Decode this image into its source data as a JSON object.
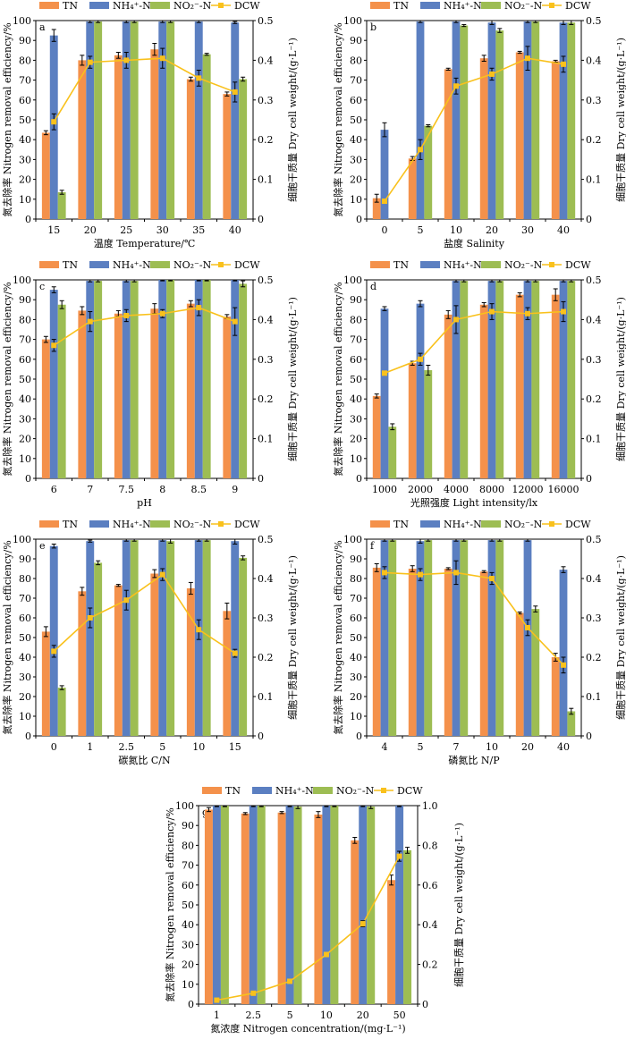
{
  "legend_labels": {
    "tn": "TN",
    "nh": "NH₄⁺-N",
    "no": "NO₂⁻-N",
    "dcw": "DCW"
  },
  "colors": {
    "tn": "#F4914B",
    "nh": "#5B7FC1",
    "no": "#9DBD53",
    "dcw": "#F9C11C",
    "err": "#000000"
  },
  "chart_data": [
    {
      "type": "bar",
      "id": "a",
      "categories": [
        "15",
        "20",
        "25",
        "30",
        "35",
        "40"
      ],
      "series": [
        {
          "name": "TN",
          "values": [
            43.5,
            80,
            82.5,
            85.5,
            70.5,
            63
          ]
        },
        {
          "name": "NH₄⁺-N",
          "values": [
            92.5,
            99.5,
            99.5,
            99.5,
            99.5,
            99
          ]
        },
        {
          "name": "NO₂⁻-N",
          "values": [
            13.5,
            99.5,
            99.5,
            99.5,
            83,
            70.5
          ]
        }
      ],
      "errors": [
        [
          1,
          2.5,
          1.5,
          3,
          1,
          1
        ],
        [
          3,
          0.5,
          0.5,
          0.5,
          0.5,
          0.5
        ],
        [
          1,
          0.5,
          0.5,
          0.5,
          0.5,
          1
        ]
      ],
      "dcw": [
        0.245,
        0.395,
        0.4,
        0.405,
        0.355,
        0.32
      ],
      "dcw_errors": [
        0.02,
        0.015,
        0.02,
        0.025,
        0.02,
        0.025
      ],
      "ylim": [
        0,
        100
      ],
      "ytick_step": 10,
      "y2lim": [
        0,
        0.5
      ],
      "y2tick_step": 0.1,
      "xlabel": "温度 Temperature/℃",
      "ylabel": "氮去除率 Nitrogen removal efficiency/%",
      "y2label": "细胞干质量 Dry cell weight/(g·L⁻¹)"
    },
    {
      "type": "bar",
      "id": "b",
      "categories": [
        "0",
        "5",
        "10",
        "20",
        "30",
        "40"
      ],
      "series": [
        {
          "name": "TN",
          "values": [
            10.5,
            30.5,
            75.5,
            81,
            84,
            79.5
          ]
        },
        {
          "name": "NH₄⁺-N",
          "values": [
            45,
            99.5,
            99.5,
            99,
            99.5,
            99
          ]
        },
        {
          "name": "NO₂⁻-N",
          "values": [
            0,
            47,
            97.5,
            95,
            99.5,
            99
          ]
        }
      ],
      "errors": [
        [
          2,
          1,
          0.5,
          1.5,
          0.5,
          0.5
        ],
        [
          3.5,
          0.5,
          0.5,
          1,
          0.5,
          1
        ],
        [
          0,
          0.5,
          0.5,
          1,
          0.5,
          1
        ]
      ],
      "dcw": [
        0.045,
        0.175,
        0.335,
        0.365,
        0.405,
        0.39
      ],
      "dcw_errors": [
        0.005,
        0.025,
        0.02,
        0.015,
        0.03,
        0.02
      ],
      "ylim": [
        0,
        100
      ],
      "ytick_step": 10,
      "y2lim": [
        0,
        0.5
      ],
      "y2tick_step": 0.1,
      "xlabel": "盐度 Salinity",
      "ylabel": "氮去除率 Nitrogen removal efficiency/%",
      "y2label": "细胞干质量 Dry cell weight/(g·L⁻¹)"
    },
    {
      "type": "bar",
      "id": "c",
      "categories": [
        "6",
        "7",
        "7.5",
        "8",
        "8.5",
        "9"
      ],
      "series": [
        {
          "name": "TN",
          "values": [
            70,
            84.5,
            83,
            85.5,
            88,
            81.5
          ]
        },
        {
          "name": "NH₄⁺-N",
          "values": [
            95,
            99.5,
            99.5,
            100,
            100,
            100
          ]
        },
        {
          "name": "NO₂⁻-N",
          "values": [
            87.5,
            99.5,
            99.5,
            100,
            100,
            98
          ]
        }
      ],
      "errors": [
        [
          1.5,
          2,
          1.5,
          2.5,
          1.5,
          1
        ],
        [
          1.5,
          0.5,
          0.5,
          0.5,
          0.5,
          0.5
        ],
        [
          2,
          0.5,
          0.5,
          0.5,
          0.5,
          1.5
        ]
      ],
      "dcw": [
        0.335,
        0.395,
        0.41,
        0.415,
        0.43,
        0.395
      ],
      "dcw_errors": [
        0.015,
        0.025,
        0.015,
        0.01,
        0.02,
        0.035
      ],
      "ylim": [
        0,
        100
      ],
      "ytick_step": 10,
      "y2lim": [
        0,
        0.5
      ],
      "y2tick_step": 0.1,
      "xlabel": "pH",
      "ylabel": "氮去除率 Nitrogen removal efficiency/%",
      "y2label": "细胞干质量 Dry cell weight/(g·L⁻¹)"
    },
    {
      "type": "bar",
      "id": "d",
      "categories": [
        "1000",
        "2000",
        "4000",
        "8000",
        "12000",
        "16000"
      ],
      "series": [
        {
          "name": "TN",
          "values": [
            41.5,
            58,
            82.5,
            87.5,
            92.5,
            92.5
          ]
        },
        {
          "name": "NH₄⁺-N",
          "values": [
            85.5,
            88,
            99.5,
            99.5,
            99.5,
            99.5
          ]
        },
        {
          "name": "NO₂⁻-N",
          "values": [
            26,
            54.5,
            99.5,
            99.5,
            99.5,
            99.5
          ]
        }
      ],
      "errors": [
        [
          1,
          1,
          2,
          1,
          1,
          3
        ],
        [
          1,
          1.5,
          0.5,
          0.5,
          0.5,
          0.5
        ],
        [
          1.5,
          2.5,
          0.5,
          0.5,
          0.5,
          0.5
        ]
      ],
      "dcw": [
        0.265,
        0.3,
        0.4,
        0.42,
        0.415,
        0.42
      ],
      "dcw_errors": [
        0.005,
        0.015,
        0.035,
        0.02,
        0.015,
        0.025
      ],
      "ylim": [
        0,
        100
      ],
      "ytick_step": 10,
      "y2lim": [
        0,
        0.5
      ],
      "y2tick_step": 0.1,
      "xlabel": "光照强度 Light intensity/lx",
      "ylabel": "氮去除率 Nitrogen removal efficiency/%",
      "y2label": "细胞干质量 Dry cell weight/(g·L⁻¹)"
    },
    {
      "type": "bar",
      "id": "e",
      "categories": [
        "0",
        "1",
        "2.5",
        "5",
        "10",
        "15"
      ],
      "series": [
        {
          "name": "TN",
          "values": [
            53,
            73.5,
            76.5,
            82.5,
            75,
            63.5
          ]
        },
        {
          "name": "NH₄⁺-N",
          "values": [
            96.5,
            99,
            99.5,
            99.5,
            99.5,
            99
          ]
        },
        {
          "name": "NO₂⁻-N",
          "values": [
            24.5,
            88,
            99.5,
            99,
            99.5,
            90.5
          ]
        }
      ],
      "errors": [
        [
          2.5,
          2,
          0.5,
          2,
          3,
          4
        ],
        [
          1,
          0.5,
          0.5,
          0.5,
          0.5,
          1.5
        ],
        [
          1,
          1,
          0.5,
          1,
          0.5,
          1
        ]
      ],
      "dcw": [
        0.215,
        0.3,
        0.345,
        0.41,
        0.27,
        0.21
      ],
      "dcw_errors": [
        0.015,
        0.025,
        0.025,
        0.015,
        0.025,
        0.01
      ],
      "ylim": [
        0,
        100
      ],
      "ytick_step": 10,
      "y2lim": [
        0,
        0.5
      ],
      "y2tick_step": 0.1,
      "xlabel": "碳氮比 C/N",
      "ylabel": "氮去除率 Nitrogen removal efficiency/%",
      "y2label": "细胞干质量 Dry cell weight/(g·L⁻¹)"
    },
    {
      "type": "bar",
      "id": "f",
      "categories": [
        "4",
        "5",
        "7",
        "10",
        "20",
        "40"
      ],
      "series": [
        {
          "name": "TN",
          "values": [
            85.5,
            85,
            85,
            83.5,
            62.5,
            40
          ]
        },
        {
          "name": "NH₄⁺-N",
          "values": [
            99.5,
            99,
            99.5,
            99.5,
            99.5,
            84.5
          ]
        },
        {
          "name": "NO₂⁻-N",
          "values": [
            99.5,
            99.5,
            99.5,
            99.5,
            64.5,
            12.5
          ]
        }
      ],
      "errors": [
        [
          2,
          1.5,
          0.5,
          0.5,
          0.5,
          2
        ],
        [
          0.5,
          1,
          0.5,
          0.5,
          0.5,
          1.5
        ],
        [
          0.5,
          0.5,
          0.5,
          0.5,
          1.5,
          1.5
        ]
      ],
      "dcw": [
        0.415,
        0.41,
        0.415,
        0.4,
        0.275,
        0.18
      ],
      "dcw_errors": [
        0.015,
        0.015,
        0.03,
        0.015,
        0.02,
        0.02
      ],
      "ylim": [
        0,
        100
      ],
      "ytick_step": 10,
      "y2lim": [
        0,
        0.5
      ],
      "y2tick_step": 0.1,
      "xlabel": "磷氮比 N/P",
      "ylabel": "氮去除率 Nitrogen removal efficiency/%",
      "y2label": "细胞干质量 Dry cell weight/(g·L⁻¹)"
    },
    {
      "type": "bar",
      "id": "g",
      "categories": [
        "1",
        "2.5",
        "5",
        "10",
        "20",
        "50"
      ],
      "series": [
        {
          "name": "TN",
          "values": [
            98,
            96,
            96.5,
            95.5,
            82.5,
            62.5
          ]
        },
        {
          "name": "NH₄⁺-N",
          "values": [
            100,
            100,
            100,
            100,
            100,
            100
          ]
        },
        {
          "name": "NO₂⁻-N",
          "values": [
            100,
            100,
            99.5,
            100,
            99.5,
            77.5
          ]
        }
      ],
      "errors": [
        [
          1,
          0.5,
          0.5,
          1.5,
          1.5,
          2.5
        ],
        [
          0.5,
          0.5,
          0.5,
          0.5,
          0.5,
          0.5
        ],
        [
          0.5,
          0.5,
          1,
          0.5,
          1,
          1.5
        ]
      ],
      "dcw": [
        0.02,
        0.055,
        0.115,
        0.25,
        0.405,
        0.745
      ],
      "dcw_errors": [
        0.005,
        0.005,
        0.01,
        0.01,
        0.015,
        0.025
      ],
      "ylim": [
        0,
        100
      ],
      "ytick_step": 10,
      "y2lim": [
        0,
        1.0
      ],
      "y2tick_step": 0.2,
      "xlabel": "氮浓度 Nitrogen concentration/(mg·L⁻¹)",
      "ylabel": "氮去除率 Nitrogen removal efficiency/%",
      "y2label": "细胞干质量 Dry cell weight/(g·L⁻¹)"
    }
  ]
}
